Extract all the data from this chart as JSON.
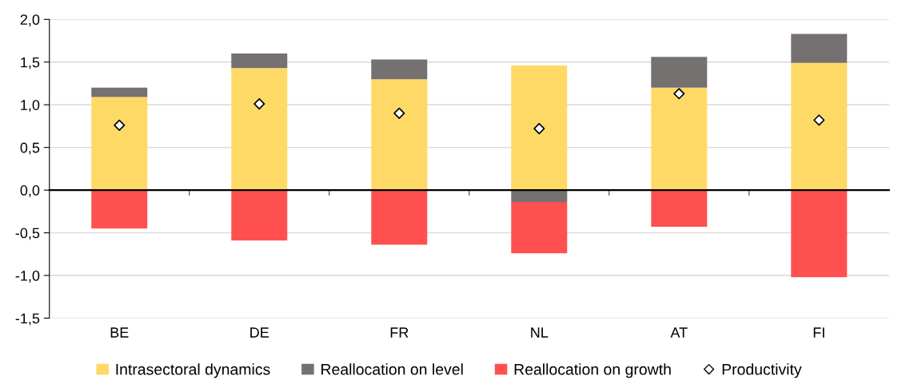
{
  "chart_data": {
    "type": "bar",
    "stacked": true,
    "categories": [
      "BE",
      "DE",
      "FR",
      "NL",
      "AT",
      "FI"
    ],
    "series": [
      {
        "name": "Intrasectoral dynamics",
        "color": "#ffd966",
        "values": [
          1.09,
          1.43,
          1.3,
          1.46,
          1.2,
          1.49
        ]
      },
      {
        "name": "Reallocation on level",
        "color": "#767171",
        "values": [
          0.11,
          0.17,
          0.23,
          -0.14,
          0.36,
          0.34
        ]
      },
      {
        "name": "Reallocation on growth",
        "color": "#ff5050",
        "values": [
          -0.45,
          -0.59,
          -0.64,
          -0.6,
          -0.43,
          -1.02
        ]
      },
      {
        "name": "Productivity",
        "type": "scatter",
        "marker": "diamond",
        "color": "#ffffff",
        "x": [
          "BE",
          "DE",
          "FR",
          "NL",
          "AT",
          "FI"
        ],
        "values": [
          0.76,
          1.01,
          0.9,
          0.72,
          1.13,
          0.82
        ]
      }
    ],
    "ylim": [
      -1.5,
      2.0
    ],
    "yticks": [
      {
        "value": -1.5,
        "label": "-1,5"
      },
      {
        "value": -1.0,
        "label": "-1,0"
      },
      {
        "value": -0.5,
        "label": "-0,5"
      },
      {
        "value": 0.0,
        "label": "0,0"
      },
      {
        "value": 0.5,
        "label": "0,5"
      },
      {
        "value": 1.0,
        "label": "1,0"
      },
      {
        "value": 1.5,
        "label": "1,5"
      },
      {
        "value": 2.0,
        "label": "2,0"
      }
    ],
    "grid": "y",
    "legend": "bottom"
  }
}
